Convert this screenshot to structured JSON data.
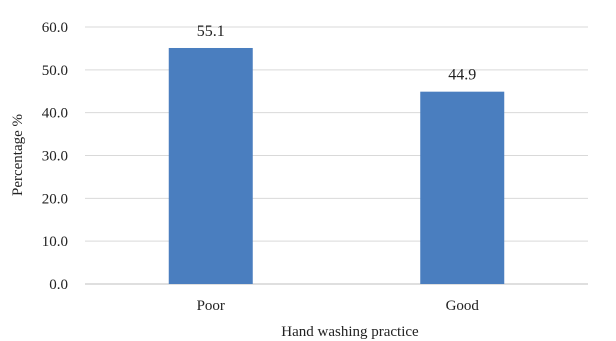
{
  "chart_data": {
    "type": "bar",
    "title": "",
    "xlabel": "Hand washing practice",
    "ylabel": "Percentage %",
    "categories": [
      "Poor",
      "Good"
    ],
    "values": [
      55.1,
      44.9
    ],
    "value_labels": [
      "55.1",
      "44.9"
    ],
    "ylim": [
      0,
      60
    ],
    "yticks": [
      "0.0",
      "10.0",
      "20.0",
      "30.0",
      "40.0",
      "50.0",
      "60.0"
    ],
    "ytick_values": [
      0,
      10,
      20,
      30,
      40,
      50,
      60
    ],
    "grid": true,
    "legend": "none",
    "bar_color": "#4a7ebf"
  }
}
